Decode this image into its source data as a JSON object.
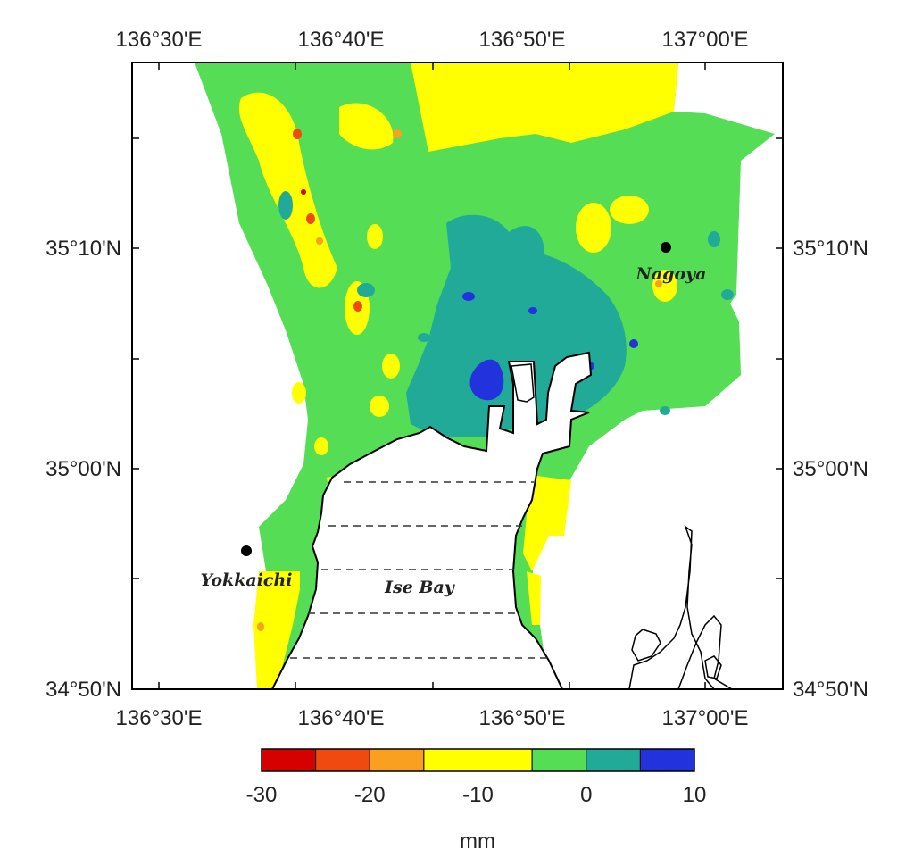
{
  "map": {
    "lon_ticks": [
      "136°30'E",
      "136°40'E",
      "136°50'E",
      "137°00'E"
    ],
    "lat_ticks": [
      "35°10'N",
      "35°00'N",
      "34°50'N"
    ],
    "places": {
      "nagoya": "Nagoya",
      "yokkaichi": "Yokkaichi",
      "ise_bay": "Ise Bay"
    },
    "colors": {
      "land_base": "#55dd55",
      "sea": "#ffffff",
      "coastline": "#000000"
    }
  },
  "colorbar": {
    "unit": "mm",
    "tick_labels": [
      "-30",
      "-20",
      "-10",
      "0",
      "10"
    ],
    "bins": [
      {
        "min": -30,
        "max": -25,
        "color": "#d60000"
      },
      {
        "min": -25,
        "max": -20,
        "color": "#f04a10"
      },
      {
        "min": -20,
        "max": -15,
        "color": "#f9a020"
      },
      {
        "min": -15,
        "max": -10,
        "color": "#ffff00"
      },
      {
        "min": -10,
        "max": -5,
        "color": "#ffff00"
      },
      {
        "min": -5,
        "max": 0,
        "color": "#55dd55"
      },
      {
        "min": 0,
        "max": 5,
        "color": "#22aa99"
      },
      {
        "min": 5,
        "max": 10,
        "color": "#2233dd"
      }
    ]
  }
}
